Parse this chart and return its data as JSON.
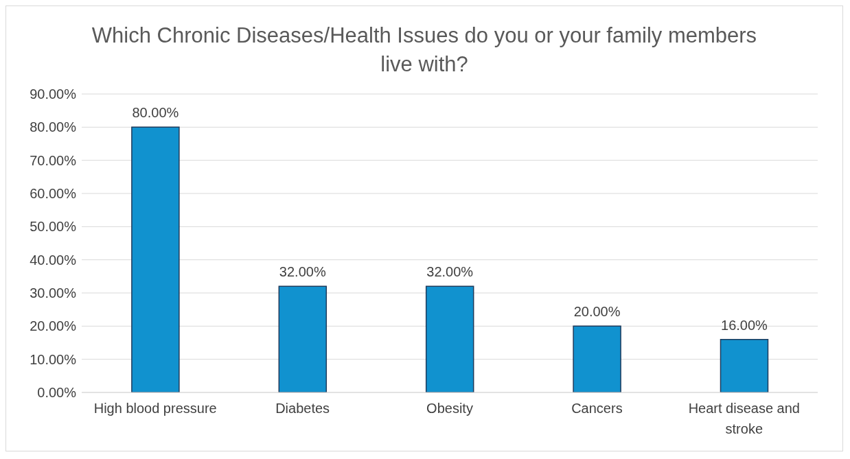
{
  "chart_data": {
    "type": "bar",
    "title": "Which Chronic Diseases/Health Issues do you or your family members live with?",
    "categories": [
      "High blood pressure",
      "Diabetes",
      "Obesity",
      "Cancers",
      "Heart disease and stroke"
    ],
    "values": [
      80,
      32,
      32,
      20,
      16
    ],
    "color": "#1192cf",
    "value_labels": [
      "80.00%",
      "32.00%",
      "32.00%",
      "20.00%",
      "16.00%"
    ],
    "ylim": [
      0,
      90
    ],
    "yticks": [
      {
        "value": 0,
        "label": "0.00%"
      },
      {
        "value": 10,
        "label": "10.00%"
      },
      {
        "value": 20,
        "label": "20.00%"
      },
      {
        "value": 30,
        "label": "30.00%"
      },
      {
        "value": 40,
        "label": "40.00%"
      },
      {
        "value": 50,
        "label": "50.00%"
      },
      {
        "value": 60,
        "label": "60.00%"
      },
      {
        "value": 70,
        "label": "70.00%"
      },
      {
        "value": 80,
        "label": "80.00%"
      },
      {
        "value": 90,
        "label": "90.00%"
      }
    ],
    "grid": "y",
    "legend": false
  }
}
